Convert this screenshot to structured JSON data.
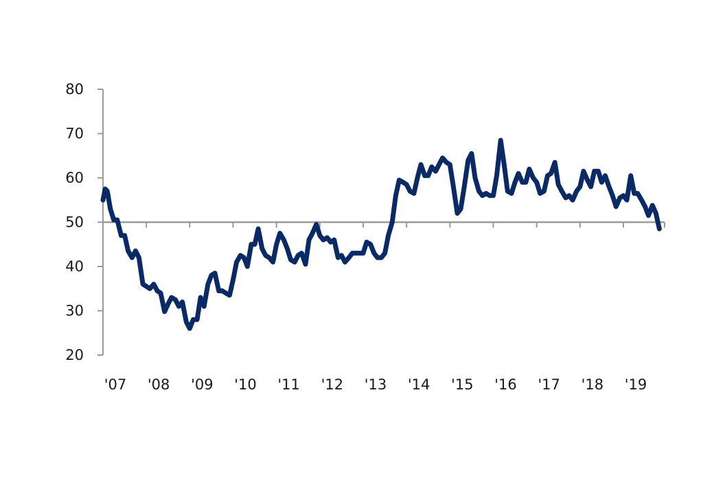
{
  "chart_data": {
    "type": "line",
    "title": "",
    "xlabel": "",
    "ylabel": "",
    "ylim": [
      20,
      80
    ],
    "xlim": [
      2007.0,
      2019.95
    ],
    "y_ticks": [
      20,
      30,
      40,
      50,
      60,
      70,
      80
    ],
    "x_ticks": [
      {
        "value": 2007,
        "label": "'07"
      },
      {
        "value": 2008,
        "label": "'08"
      },
      {
        "value": 2009,
        "label": "'09"
      },
      {
        "value": 2010,
        "label": "'10"
      },
      {
        "value": 2011,
        "label": "'11"
      },
      {
        "value": 2012,
        "label": "'12"
      },
      {
        "value": 2013,
        "label": "'13"
      },
      {
        "value": 2014,
        "label": "'14"
      },
      {
        "value": 2015,
        "label": "'15"
      },
      {
        "value": 2016,
        "label": "'16"
      },
      {
        "value": 2017,
        "label": "'17"
      },
      {
        "value": 2018,
        "label": "'18"
      },
      {
        "value": 2019,
        "label": "'19"
      }
    ],
    "reference_line": 50,
    "grid": false,
    "line_color": "#0a2a66",
    "axis_color": "#9a9a9a",
    "series": [
      {
        "x": [
          2007.0,
          2007.05,
          2007.1,
          2007.17,
          2007.25,
          2007.33,
          2007.42,
          2007.5,
          2007.58,
          2007.67,
          2007.75,
          2007.83,
          2007.92,
          2008.0,
          2008.08,
          2008.17,
          2008.25,
          2008.33,
          2008.42,
          2008.5,
          2008.58,
          2008.67,
          2008.75,
          2008.83,
          2008.92,
          2009.0,
          2009.08,
          2009.17,
          2009.25,
          2009.33,
          2009.42,
          2009.5,
          2009.58,
          2009.67,
          2009.75,
          2009.83,
          2009.92,
          2010.0,
          2010.08,
          2010.17,
          2010.25,
          2010.33,
          2010.42,
          2010.5,
          2010.58,
          2010.67,
          2010.75,
          2010.83,
          2010.92,
          2011.0,
          2011.08,
          2011.17,
          2011.25,
          2011.33,
          2011.42,
          2011.5,
          2011.58,
          2011.67,
          2011.75,
          2011.83,
          2011.92,
          2012.0,
          2012.08,
          2012.17,
          2012.25,
          2012.33,
          2012.42,
          2012.5,
          2012.58,
          2012.67,
          2012.75,
          2012.83,
          2012.92,
          2013.0,
          2013.08,
          2013.17,
          2013.25,
          2013.33,
          2013.42,
          2013.5,
          2013.58,
          2013.67,
          2013.75,
          2013.83,
          2013.92,
          2014.0,
          2014.08,
          2014.17,
          2014.25,
          2014.33,
          2014.42,
          2014.5,
          2014.58,
          2014.67,
          2014.75,
          2014.83,
          2014.92,
          2015.0,
          2015.08,
          2015.17,
          2015.25,
          2015.33,
          2015.42,
          2015.5,
          2015.58,
          2015.67,
          2015.75,
          2015.83,
          2015.92,
          2016.0,
          2016.08,
          2016.17,
          2016.25,
          2016.33,
          2016.42,
          2016.5,
          2016.58,
          2016.67,
          2016.75,
          2016.83,
          2016.92,
          2017.0,
          2017.08,
          2017.17,
          2017.25,
          2017.33,
          2017.42,
          2017.5,
          2017.58,
          2017.67,
          2017.75,
          2017.83,
          2017.92,
          2018.0,
          2018.08,
          2018.17,
          2018.25,
          2018.33,
          2018.42,
          2018.5,
          2018.58,
          2018.67,
          2018.75,
          2018.83,
          2018.92,
          2019.0,
          2019.08,
          2019.17,
          2019.25,
          2019.33,
          2019.42,
          2019.5,
          2019.58,
          2019.67,
          2019.75,
          2019.83
        ],
        "y": [
          55,
          57.5,
          57,
          53,
          50.5,
          50.5,
          47,
          47,
          43.5,
          42,
          43.5,
          42,
          36,
          35.5,
          35,
          36,
          34.5,
          34,
          29.8,
          31.5,
          33,
          32.5,
          31,
          32,
          27.5,
          26,
          28,
          28,
          33,
          31,
          36,
          38,
          38.5,
          34.5,
          34.5,
          34,
          33.5,
          37,
          41,
          42.5,
          42,
          40,
          45,
          45,
          48.5,
          44,
          42.5,
          42,
          41,
          45,
          47.5,
          46,
          44,
          41.5,
          41,
          42.5,
          43,
          40.5,
          46,
          47.5,
          49.5,
          47,
          46,
          46.5,
          45.5,
          46,
          42,
          42.5,
          41,
          42,
          43,
          43,
          43,
          43,
          45.5,
          45,
          43,
          42,
          42,
          43,
          47,
          50,
          56,
          59.5,
          59,
          58.5,
          57,
          56.5,
          60,
          63,
          60.5,
          60.5,
          62.5,
          61.5,
          63,
          64.5,
          63.5,
          63,
          58,
          52,
          53,
          58,
          64,
          65.5,
          60,
          57,
          56,
          56.5,
          56,
          56,
          60.5,
          68.5,
          63,
          57,
          56.5,
          59,
          61,
          59,
          59,
          62,
          60,
          59,
          56.5,
          57,
          60.5,
          61,
          63.5,
          58.5,
          57,
          55.5,
          56,
          55,
          57,
          58,
          61.5,
          59.5,
          58,
          61.5,
          61.5,
          59,
          60.5,
          58,
          56,
          53.5,
          55.5,
          56,
          55,
          60.5,
          56.5,
          56.5,
          55,
          53.5,
          51.5,
          53.8,
          52,
          48.5
        ]
      }
    ]
  }
}
